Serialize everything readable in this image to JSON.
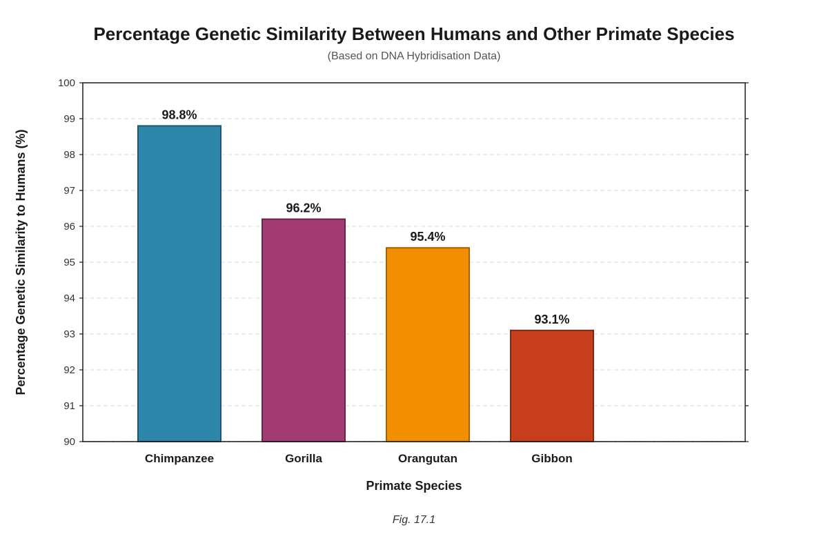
{
  "chart_data": {
    "type": "bar",
    "title": "Percentage Genetic Similarity Between Humans and Other Primate Species",
    "subtitle": "(Based on DNA Hybridisation Data)",
    "xlabel": "Primate Species",
    "ylabel": "Percentage Genetic Similarity to Humans (%)",
    "caption": "Fig. 17.1",
    "categories": [
      "Chimpanzee",
      "Gorilla",
      "Orangutan",
      "Gibbon"
    ],
    "values": [
      98.8,
      96.2,
      95.4,
      93.1
    ],
    "value_labels": [
      "98.8%",
      "96.2%",
      "95.4%",
      "93.1%"
    ],
    "colors": [
      "#2e86ab",
      "#a23b72",
      "#f18f01",
      "#c73e1d"
    ],
    "border_colors": [
      "#1d566e",
      "#6b2449",
      "#a66200",
      "#832814"
    ],
    "ylim": [
      90,
      100
    ],
    "yticks": [
      90,
      91,
      92,
      93,
      94,
      95,
      96,
      97,
      98,
      99,
      100
    ],
    "grid": true,
    "legend": "none"
  }
}
